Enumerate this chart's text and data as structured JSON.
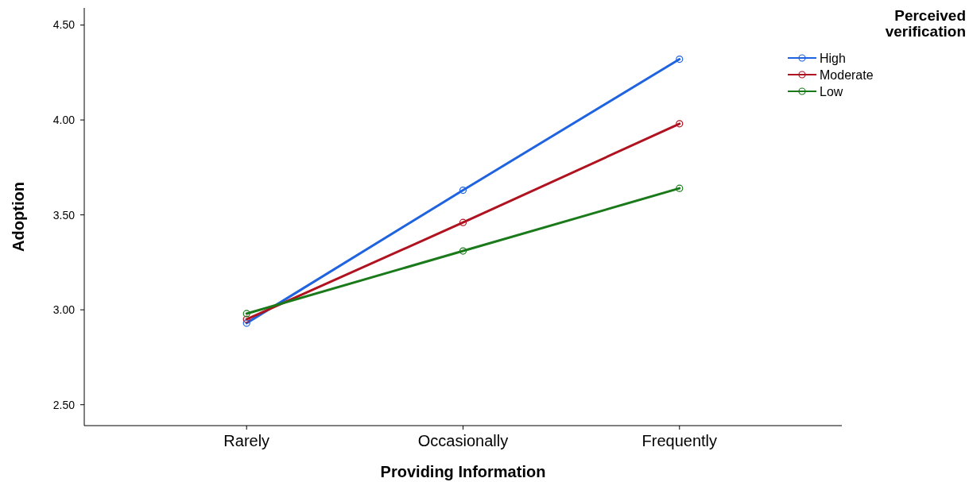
{
  "chart_data": {
    "type": "line",
    "xlabel": "Providing Information",
    "ylabel": "Adoption",
    "legend_title": "Perceived verification",
    "categories": [
      "Rarely",
      "Occasionally",
      "Frequently"
    ],
    "series": [
      {
        "name": "High",
        "color": "#1f63e0",
        "values": [
          2.93,
          3.63,
          4.32
        ]
      },
      {
        "name": "Moderate",
        "color": "#b0121f",
        "values": [
          2.95,
          3.46,
          3.98
        ]
      },
      {
        "name": "Low",
        "color": "#1a7a1a",
        "values": [
          2.98,
          3.31,
          3.64
        ]
      }
    ],
    "ylim": [
      2.39,
      4.59
    ],
    "yticks": [
      {
        "value": 2.5,
        "label": "2.50"
      },
      {
        "value": 3,
        "label": "3.00"
      },
      {
        "value": 3.5,
        "label": "3.50"
      },
      {
        "value": 4,
        "label": "4.00"
      },
      {
        "value": 4.5,
        "label": "4.50"
      }
    ],
    "legend": "top right",
    "marker": "circle",
    "line_style": "solid"
  }
}
